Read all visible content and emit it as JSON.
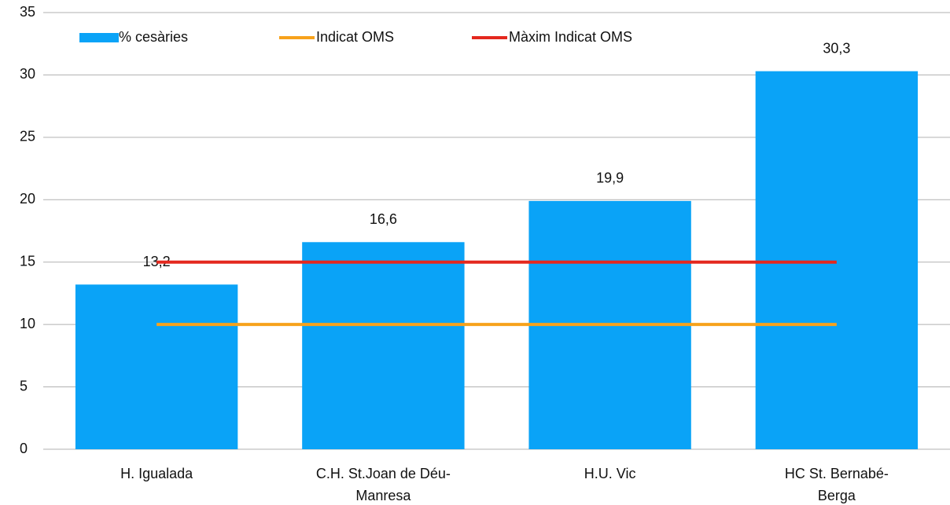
{
  "chart_data": {
    "type": "bar",
    "categories": [
      "H. Igualada",
      "C.H. St.Joan de Déu-Manresa",
      "H.U. Vic",
      "HC St. Bernabé-Berga"
    ],
    "series": [
      {
        "name": "% cesàries",
        "type": "bar",
        "color": "#0aa3f7",
        "values": [
          13.2,
          16.6,
          19.9,
          30.3
        ],
        "value_labels": [
          "13,2",
          "16,6",
          "19,9",
          "30,3"
        ]
      },
      {
        "name": "Indicat OMS",
        "type": "line",
        "color": "#f7a21b",
        "values": [
          10,
          10,
          10,
          10
        ]
      },
      {
        "name": "Màxim Indicat OMS",
        "type": "line",
        "color": "#e4281e",
        "values": [
          15,
          15,
          15,
          15
        ]
      }
    ],
    "ylim": [
      0,
      35
    ],
    "yticks": [
      0,
      5,
      10,
      15,
      20,
      25,
      30,
      35
    ],
    "grid": true,
    "legend": "top-left"
  }
}
